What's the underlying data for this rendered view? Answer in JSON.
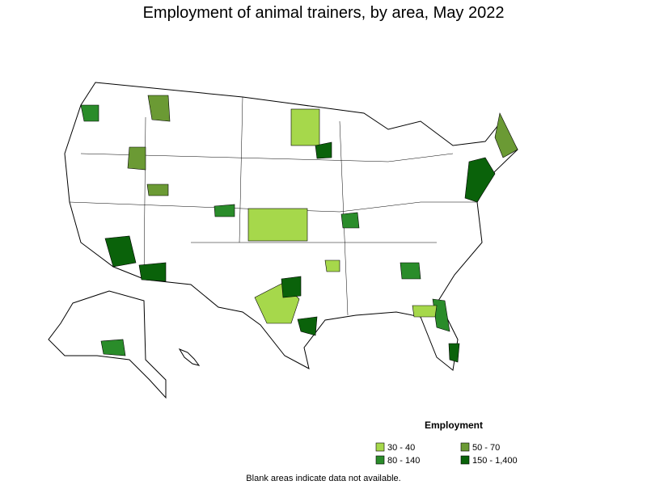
{
  "title": "Employment of animal trainers, by area, May 2022",
  "legend": {
    "title": "Employment",
    "items": [
      {
        "label": "30 - 40",
        "color": "#a6d84b"
      },
      {
        "label": "50 - 70",
        "color": "#6b9a34"
      },
      {
        "label": "80 - 140",
        "color": "#2a8c2a"
      },
      {
        "label": "150 - 1,400",
        "color": "#0a620a"
      }
    ]
  },
  "note": "Blank areas indicate data not available."
}
